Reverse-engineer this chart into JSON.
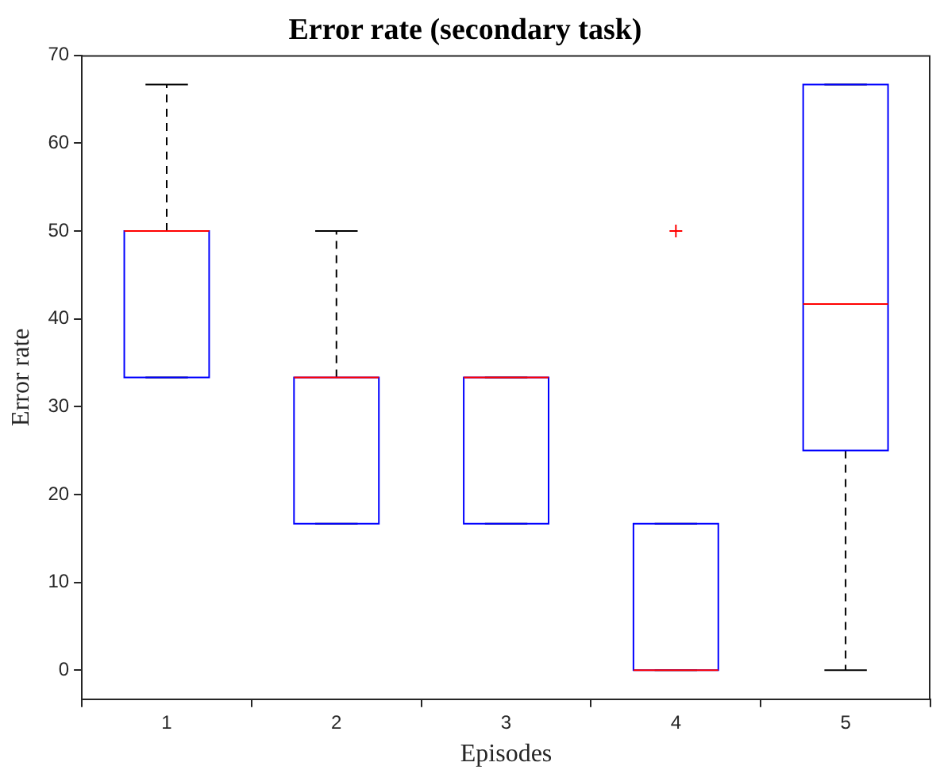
{
  "chart_data": {
    "type": "box",
    "title": "Error rate (secondary task)",
    "xlabel": "Episodes",
    "ylabel": "Error rate",
    "categories": [
      "1",
      "2",
      "3",
      "4",
      "5"
    ],
    "color": "#0000ff",
    "marker": "cross",
    "boxes": [
      {
        "low": 33.33,
        "q1": 33.33,
        "median": 50,
        "q3": 50,
        "high": 66.67
      },
      {
        "low": 16.67,
        "q1": 16.67,
        "median": 33.33,
        "q3": 33.33,
        "high": 50
      },
      {
        "low": 16.67,
        "q1": 16.67,
        "median": 33.33,
        "q3": 33.33,
        "high": 33.33
      },
      {
        "low": 0,
        "q1": 0,
        "median": 0,
        "q3": 16.67,
        "high": 16.67,
        "outliers": [
          50
        ]
      },
      {
        "low": 0,
        "q1": 25,
        "median": 41.67,
        "q3": 66.67,
        "high": 66.67
      }
    ],
    "ylim": [
      -3.3,
      70
    ],
    "yticks": [
      0,
      10,
      20,
      30,
      40,
      50,
      60,
      70
    ],
    "grid": false
  }
}
